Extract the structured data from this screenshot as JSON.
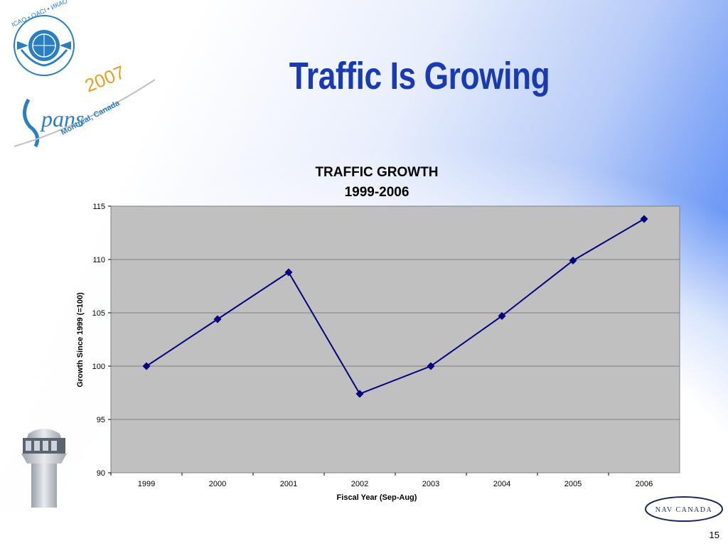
{
  "slide": {
    "title": "Traffic Is Growing",
    "page_number": "15"
  },
  "logos": {
    "icao_text": "ICAO • OACI • ИКАО",
    "event_text": "2007",
    "event_location": "Montréal, Canada",
    "navcanada_text": "NAV CANADA"
  },
  "colors": {
    "title": "#1a3bb0",
    "series": "#000080",
    "plot_bg": "#c0c0c0",
    "bg_gradient": "#6f9af5"
  },
  "chart_data": {
    "type": "line",
    "title": "TRAFFIC GROWTH",
    "subtitle": "1999-2006",
    "xlabel": "Fiscal Year (Sep-Aug)",
    "ylabel": "Growth Since 1999 (=100)",
    "categories": [
      "1999",
      "2000",
      "2001",
      "2002",
      "2003",
      "2004",
      "2005",
      "2006"
    ],
    "values": [
      100.0,
      104.4,
      108.8,
      97.4,
      100.0,
      104.7,
      109.9,
      113.8
    ],
    "ylim": [
      90,
      115
    ],
    "yticks": [
      "90",
      "95",
      "100",
      "105",
      "110",
      "115"
    ],
    "grid": true,
    "legend": "none"
  }
}
